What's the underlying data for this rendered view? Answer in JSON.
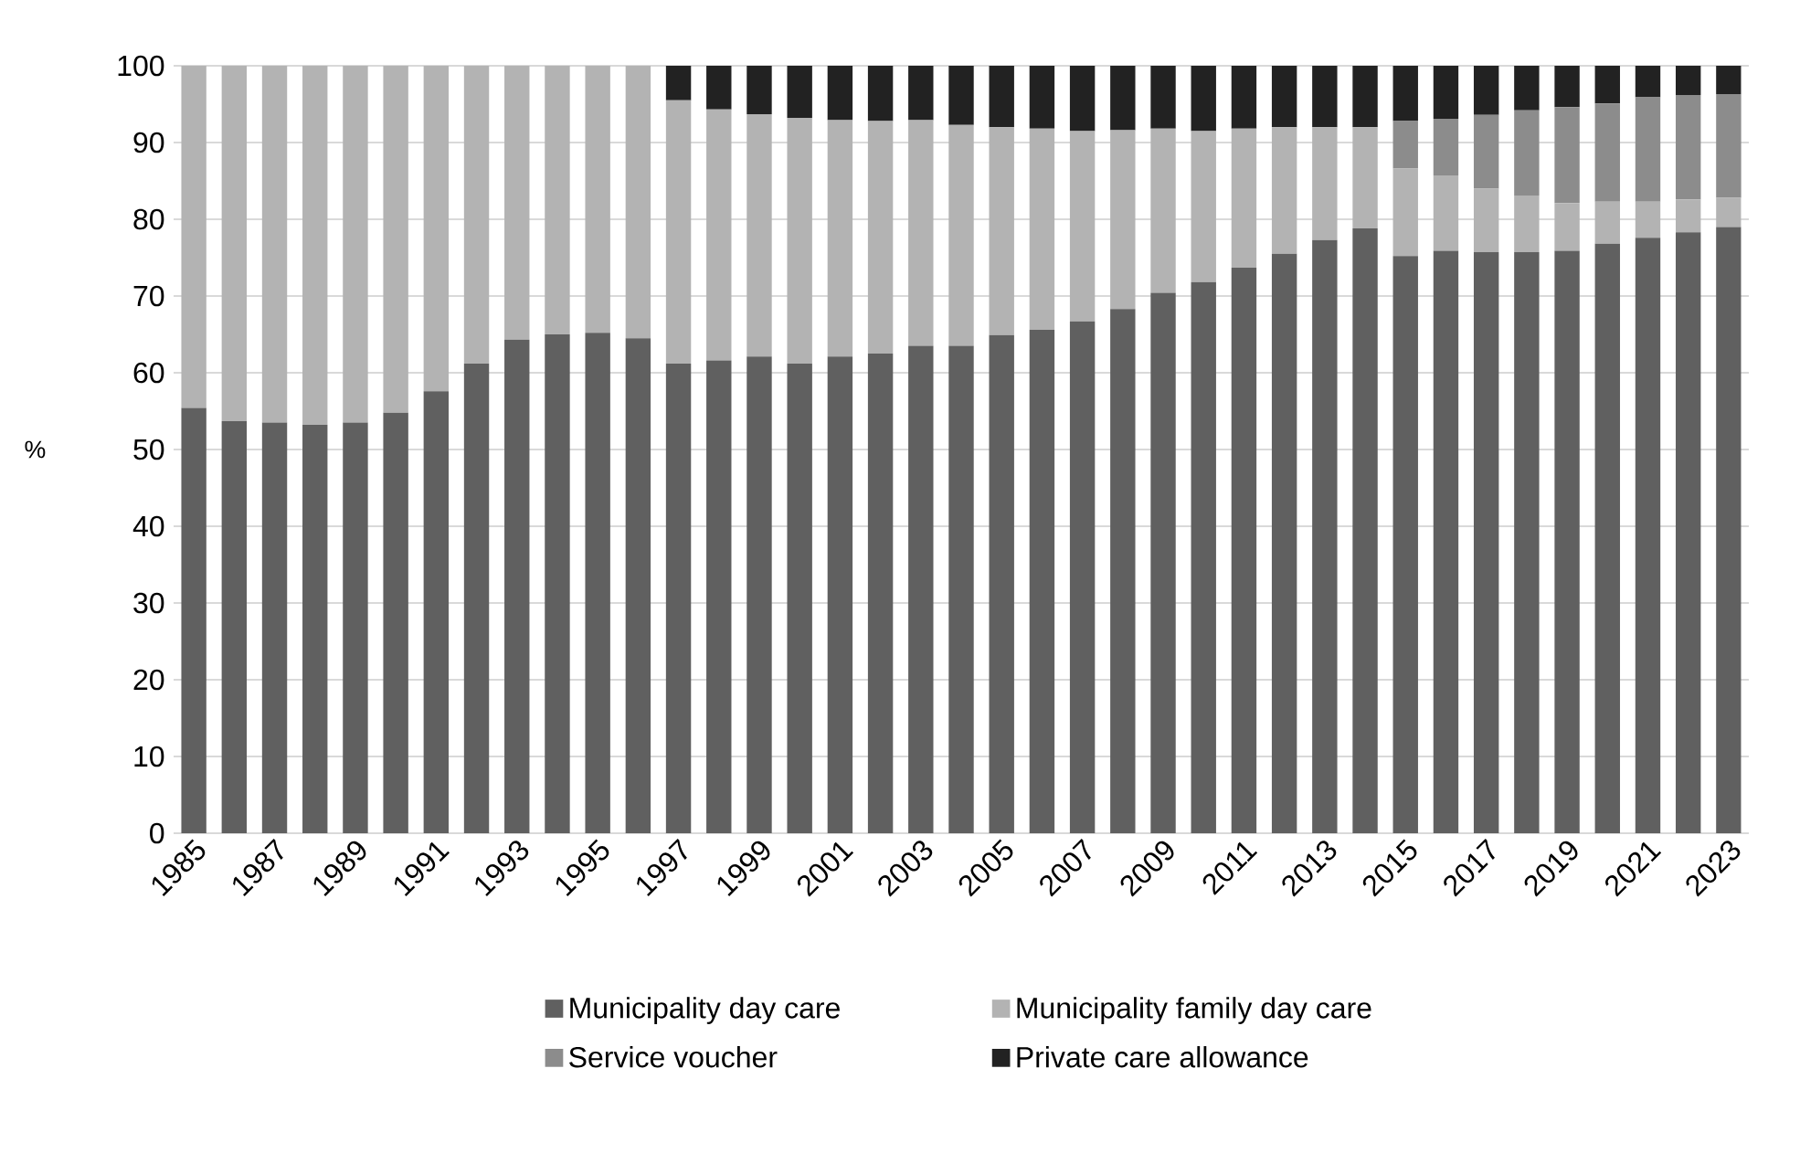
{
  "chart_data": {
    "type": "bar",
    "stacked": true,
    "ylabel": "%",
    "categories": [
      "1985",
      null,
      "1987",
      null,
      "1989",
      null,
      "1991",
      null,
      "1993",
      null,
      "1995",
      null,
      "1997",
      null,
      "1999",
      null,
      "2001",
      null,
      "2003",
      null,
      "2005",
      null,
      "2007",
      null,
      "2009",
      null,
      "2011",
      null,
      "2013",
      null,
      "2015",
      null,
      "2017",
      null,
      "2019",
      null,
      "2021",
      null,
      "2023"
    ],
    "series": [
      {
        "name": "Municipality day care",
        "color": "#606060",
        "values": [
          55.4,
          53.7,
          53.5,
          53.2,
          53.5,
          54.8,
          57.6,
          61.2,
          64.3,
          65.0,
          65.2,
          64.5,
          61.2,
          61.6,
          62.1,
          61.2,
          62.1,
          62.5,
          63.5,
          63.5,
          64.9,
          65.6,
          66.7,
          68.3,
          70.4,
          71.8,
          73.7,
          75.5,
          77.3,
          78.8,
          75.2,
          75.9,
          75.7,
          75.7,
          75.9,
          76.8,
          77.6,
          78.3,
          79.0
        ]
      },
      {
        "name": "Municipality family day care",
        "color": "#b3b3b3",
        "values": [
          44.6,
          46.3,
          46.5,
          46.8,
          46.5,
          45.2,
          42.4,
          38.8,
          35.7,
          35.0,
          34.8,
          35.5,
          34.3,
          32.7,
          31.6,
          32.0,
          30.8,
          30.3,
          29.4,
          28.8,
          27.1,
          26.2,
          24.8,
          23.3,
          21.4,
          19.7,
          18.1,
          16.5,
          14.7,
          13.2,
          11.4,
          9.8,
          8.3,
          7.4,
          6.2,
          5.5,
          4.7,
          4.3,
          3.8
        ]
      },
      {
        "name": "Service voucher",
        "color": "#8c8c8c",
        "values": [
          null,
          null,
          null,
          null,
          null,
          null,
          null,
          null,
          null,
          null,
          null,
          null,
          null,
          null,
          null,
          null,
          null,
          null,
          null,
          null,
          null,
          null,
          null,
          null,
          null,
          null,
          null,
          null,
          null,
          null,
          6.2,
          7.4,
          9.6,
          11.1,
          12.5,
          12.8,
          13.6,
          13.6,
          13.5
        ]
      },
      {
        "name": "Private care allowance",
        "color": "#222222",
        "values": [
          null,
          null,
          null,
          null,
          null,
          null,
          null,
          null,
          null,
          null,
          null,
          null,
          4.5,
          5.7,
          6.3,
          6.8,
          7.1,
          7.2,
          7.1,
          7.7,
          8.0,
          8.2,
          8.5,
          8.4,
          8.2,
          8.5,
          8.2,
          8.0,
          8.0,
          8.0,
          7.2,
          6.9,
          6.4,
          5.8,
          5.4,
          4.9,
          4.1,
          3.8,
          3.7
        ]
      }
    ],
    "ylim": [
      0,
      100
    ],
    "yticks": [
      0,
      10,
      20,
      30,
      40,
      50,
      60,
      70,
      80,
      90,
      100
    ],
    "grid": "y",
    "legend": "bottom"
  }
}
